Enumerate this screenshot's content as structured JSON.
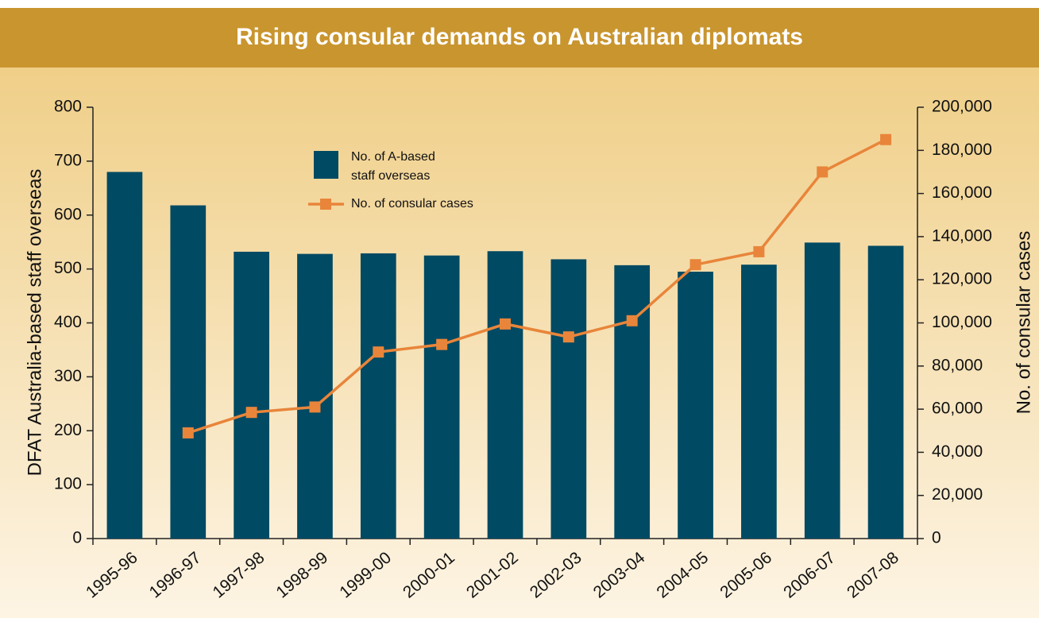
{
  "chart_data": {
    "type": "bar_line",
    "title": "Rising consular demands on Australian diplomats",
    "categories": [
      "1995-96",
      "1996-97",
      "1997-98",
      "1998-99",
      "1999-00",
      "2000-01",
      "2001-02",
      "2002-03",
      "2003-04",
      "2004-05",
      "2005-06",
      "2006-07",
      "2007-08"
    ],
    "series": [
      {
        "name": "No. of A-based staff overseas",
        "type": "bar",
        "color": "#004a63",
        "values": [
          680,
          618,
          532,
          528,
          529,
          525,
          533,
          518,
          507,
          495,
          508,
          549,
          543
        ]
      },
      {
        "name": "No. of consular cases",
        "type": "line",
        "axis": "y2",
        "color": "#e8853a",
        "values": [
          null,
          49000,
          58500,
          61000,
          86500,
          90000,
          99500,
          93500,
          101000,
          127000,
          133000,
          170000,
          185000
        ]
      }
    ],
    "ylabel": "DFAT Australia-based staff overseas",
    "y2label": "No. of consular cases",
    "ylim": [
      0,
      800
    ],
    "yticks": [
      0,
      100,
      200,
      300,
      400,
      500,
      600,
      700,
      800
    ],
    "y2lim": [
      0,
      200000
    ],
    "y2ticks": [
      0,
      {
        "value": 20000,
        "label": "20,000"
      },
      {
        "value": 40000,
        "label": "40,000"
      },
      {
        "value": 60000,
        "label": "60,000"
      },
      {
        "value": 80000,
        "label": "80,000"
      },
      {
        "value": 100000,
        "label": "100,000"
      },
      {
        "value": 120000,
        "label": "120,000"
      },
      {
        "value": 140000,
        "label": "140,000"
      },
      {
        "value": 160000,
        "label": "160,000"
      },
      {
        "value": 180000,
        "label": "180,000"
      },
      {
        "value": 200000,
        "label": "200,000"
      }
    ],
    "grid": false
  }
}
